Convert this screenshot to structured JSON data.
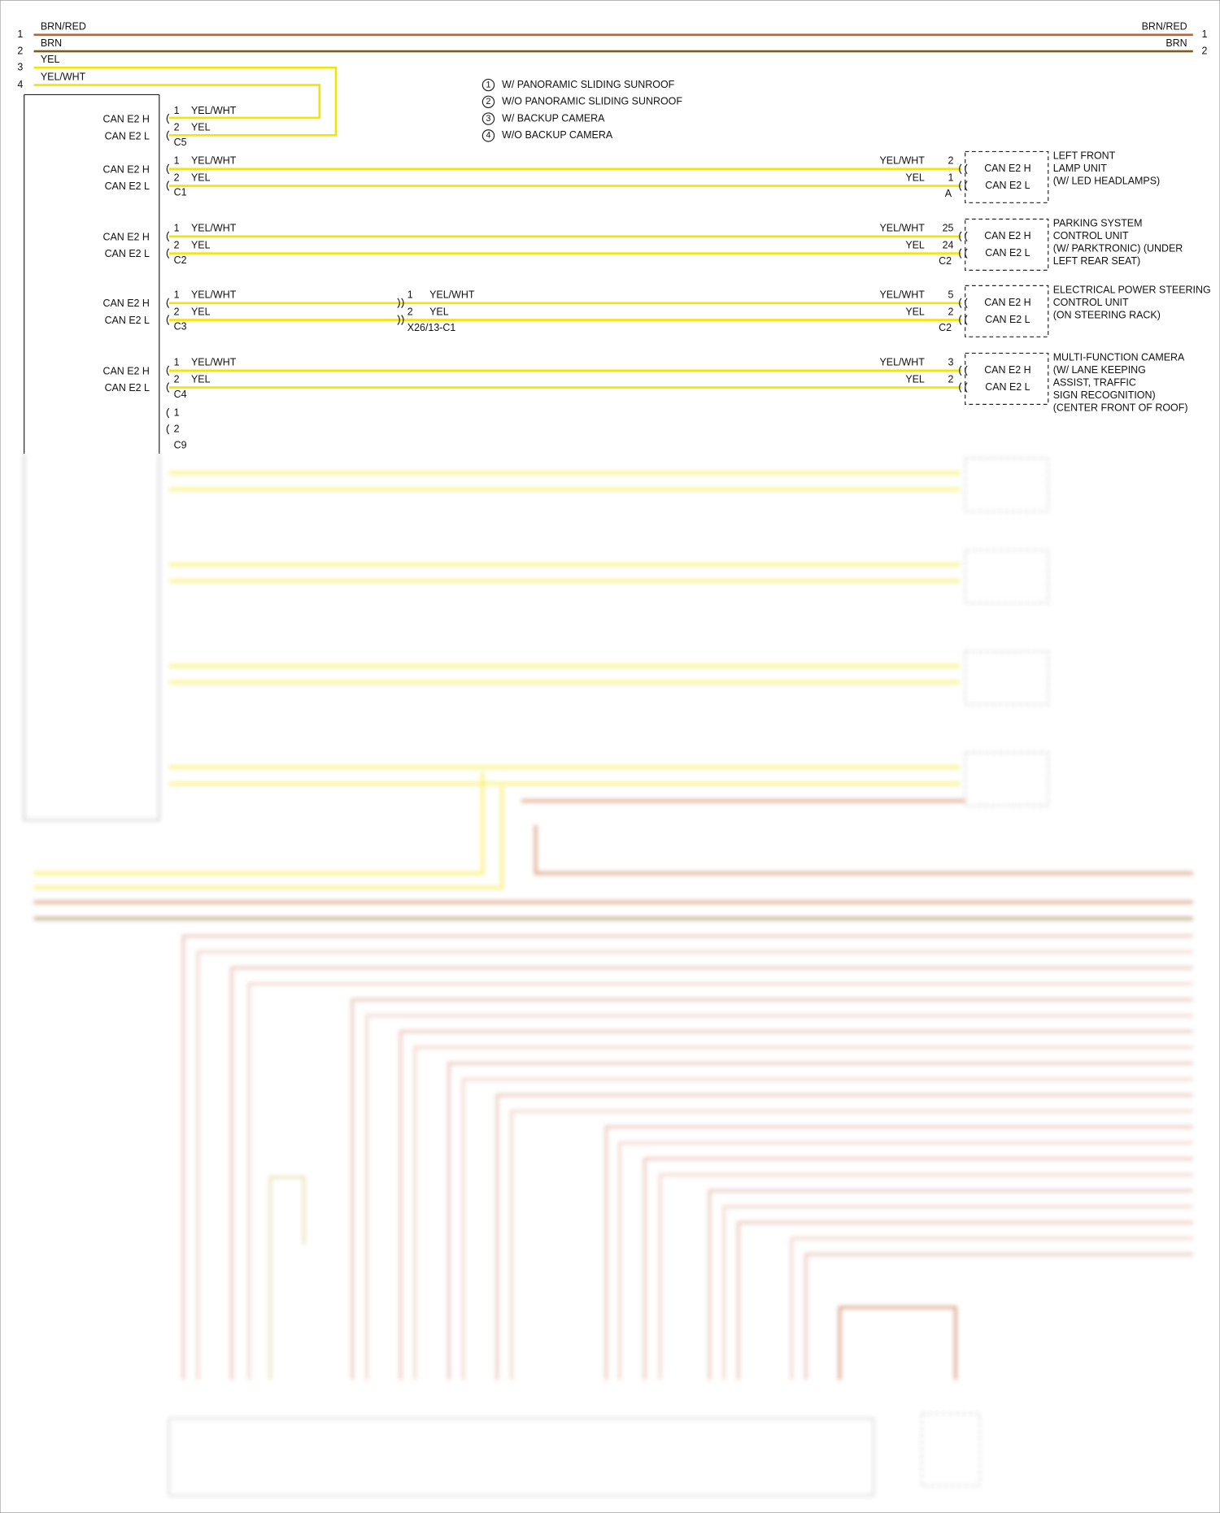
{
  "header_wires": [
    {
      "left_pin": "1",
      "label_left": "BRN/RED",
      "label_right": "BRN/RED",
      "right_pin": "1"
    },
    {
      "left_pin": "2",
      "label_left": "BRN",
      "label_right": "BRN",
      "right_pin": "2"
    },
    {
      "left_pin": "3",
      "label_left": "YEL"
    },
    {
      "left_pin": "4",
      "label_left": "YEL/WHT"
    }
  ],
  "legend": [
    {
      "num": "1",
      "text": "W/ PANORAMIC SLIDING SUNROOF"
    },
    {
      "num": "2",
      "text": "W/O PANORAMIC SLIDING SUNROOF"
    },
    {
      "num": "3",
      "text": "W/ BACKUP CAMERA"
    },
    {
      "num": "4",
      "text": "W/O BACKUP CAMERA"
    }
  ],
  "c5": {
    "signals": [
      "CAN E2 H",
      "CAN E2 L"
    ],
    "pins": [
      "1",
      "2"
    ],
    "wires": [
      "YEL/WHT",
      "YEL"
    ],
    "connector": "C5"
  },
  "branches": [
    {
      "signals": [
        "CAN E2 H",
        "CAN E2 L"
      ],
      "pins": [
        "1",
        "2"
      ],
      "wires": [
        "YEL/WHT",
        "YEL"
      ],
      "connector": "C1",
      "far_wires": [
        "YEL/WHT",
        "YEL"
      ],
      "far_pins": [
        "2",
        "1"
      ],
      "far_connector": "A",
      "module_signals": [
        "CAN E2 H",
        "CAN E2 L"
      ],
      "module": [
        "LEFT FRONT",
        "LAMP UNIT",
        "(W/ LED HEADLAMPS)"
      ]
    },
    {
      "signals": [
        "CAN E2 H",
        "CAN E2 L"
      ],
      "pins": [
        "1",
        "2"
      ],
      "wires": [
        "YEL/WHT",
        "YEL"
      ],
      "connector": "C2",
      "far_wires": [
        "YEL/WHT",
        "YEL"
      ],
      "far_pins": [
        "25",
        "24"
      ],
      "far_connector": "C2",
      "module_signals": [
        "CAN E2 H",
        "CAN E2 L"
      ],
      "module": [
        "PARKING SYSTEM",
        "CONTROL UNIT",
        "(W/ PARKTRONIC) (UNDER",
        "LEFT REAR SEAT)"
      ]
    },
    {
      "signals": [
        "CAN E2 H",
        "CAN E2 L"
      ],
      "pins": [
        "1",
        "2"
      ],
      "wires": [
        "YEL/WHT",
        "YEL"
      ],
      "connector": "C3",
      "inline": {
        "pins": [
          "1",
          "2"
        ],
        "wires": [
          "YEL/WHT",
          "YEL"
        ],
        "name": "X26/13-C1"
      },
      "far_wires": [
        "YEL/WHT",
        "YEL"
      ],
      "far_pins": [
        "5",
        "2"
      ],
      "far_connector": "C2",
      "module_signals": [
        "CAN E2 H",
        "CAN E2 L"
      ],
      "module": [
        "ELECTRICAL POWER STEERING",
        "CONTROL UNIT",
        "(ON STEERING RACK)"
      ]
    },
    {
      "signals": [
        "CAN E2 H",
        "CAN E2 L"
      ],
      "pins": [
        "1",
        "2"
      ],
      "wires": [
        "YEL/WHT",
        "YEL"
      ],
      "connector": "C4",
      "far_wires": [
        "YEL/WHT",
        "YEL"
      ],
      "far_pins": [
        "3",
        "2"
      ],
      "module_signals": [
        "CAN E2 H",
        "CAN E2 L"
      ],
      "module": [
        "MULTI-FUNCTION CAMERA",
        "(W/ LANE KEEPING",
        "ASSIST, TRAFFIC",
        "SIGN RECOGNITION)",
        "(CENTER FRONT OF ROOF)"
      ]
    }
  ],
  "c9": {
    "pins": [
      "1",
      "2"
    ],
    "connector": "C9"
  }
}
